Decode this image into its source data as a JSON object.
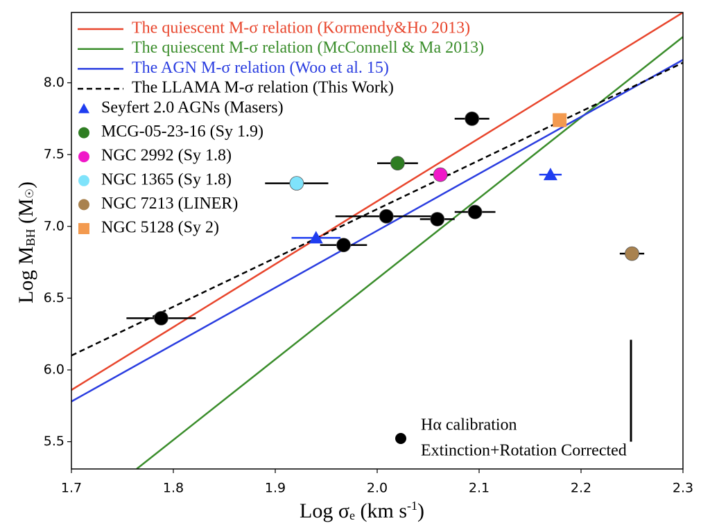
{
  "chart_data": {
    "type": "scatter",
    "xlabel": [
      "Log σ",
      "e",
      " (km s",
      "-1",
      ")"
    ],
    "ylabel": [
      "Log M",
      "BH",
      "  (M",
      "☉",
      ")"
    ],
    "xlim": [
      1.7,
      2.3
    ],
    "ylim": [
      5.31,
      8.49
    ],
    "xticks": [
      1.7,
      1.8,
      1.9,
      {
        "value": 2.0,
        "label": "2.0"
      },
      2.1,
      2.2,
      2.3
    ],
    "yticks": [
      5.5,
      {
        "value": 6.0,
        "label": "6.0"
      },
      6.5,
      {
        "value": 7.0,
        "label": "7.0"
      },
      7.5,
      {
        "value": 8.0,
        "label": "8.0"
      }
    ],
    "lines": [
      {
        "name": "The quiescent M-σ  relation (Kormendy&Ho 2013)",
        "color": "#e8452c",
        "dash": false,
        "x": [
          1.7,
          2.3
        ],
        "y": [
          5.86,
          8.49
        ]
      },
      {
        "name": "The quiescent M-σ relation (McConnell & Ma 2013)",
        "color": "#3a8d2b",
        "dash": false,
        "x": [
          1.764,
          2.3
        ],
        "y": [
          5.31,
          8.32
        ]
      },
      {
        "name": "The AGN M-σ relation (Woo et al. 15)",
        "color": "#2a3de0",
        "dash": false,
        "x": [
          1.7,
          2.3
        ],
        "y": [
          5.78,
          8.16
        ]
      },
      {
        "name": "The LLAMA M-σ relation (This Work)",
        "color": "#000000",
        "dash": true,
        "x": [
          1.7,
          2.3
        ],
        "y": [
          6.1,
          8.14
        ]
      }
    ],
    "series": [
      {
        "name": "Hα calibration",
        "note": "Extinction+Rotation Corrected",
        "color": "#000000",
        "marker": "circle",
        "x": [
          1.788,
          1.967,
          2.009,
          2.059,
          2.096,
          2.093
        ],
        "y": [
          6.36,
          6.87,
          7.07,
          7.05,
          7.1,
          7.75
        ],
        "xerr": [
          0.034,
          0.023,
          0.05,
          0.017,
          0.02,
          0.017
        ]
      },
      {
        "name": "Seyfert 2.0 AGNs (Masers)",
        "color": "#1f3df0",
        "marker": "triangle",
        "x": [
          1.94,
          2.17
        ],
        "y": [
          6.92,
          7.36
        ],
        "xerr": [
          0.024,
          0.011
        ]
      },
      {
        "name": "MCG-05-23-16 (Sy 1.9)",
        "color": "#2f7d23",
        "marker": "circle",
        "x": [
          2.02
        ],
        "y": [
          7.44
        ],
        "xerr": [
          0.02
        ]
      },
      {
        "name": "NGC 2992 (Sy 1.8)",
        "color": "#f018c8",
        "marker": "circle",
        "x": [
          2.062
        ],
        "y": [
          7.36
        ],
        "xerr": [
          0.01
        ]
      },
      {
        "name": "NGC 1365 (Sy 1.8)",
        "color": "#7fe3fb",
        "marker": "circle",
        "x": [
          1.921
        ],
        "y": [
          7.3
        ],
        "xerr": [
          0.031
        ]
      },
      {
        "name": "NGC 7213 (LINER)",
        "color": "#a9824f",
        "marker": "circle",
        "x": [
          2.25
        ],
        "y": [
          6.81
        ],
        "xerr": [
          0.012
        ]
      },
      {
        "name": "NGC 5128 (Sy 2)",
        "color": "#f39a4f",
        "marker": "square",
        "x": [
          2.179
        ],
        "y": [
          7.74
        ],
        "xerr": [
          0
        ]
      }
    ],
    "error_bar": {
      "x": 2.249,
      "y": [
        5.5,
        6.21
      ]
    }
  }
}
